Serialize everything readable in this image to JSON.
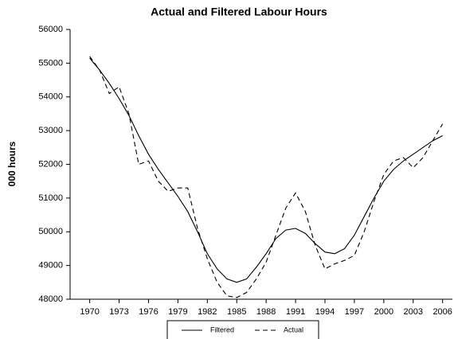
{
  "chart_data": {
    "type": "line",
    "title": "Actual and Filtered Labour Hours",
    "y_label": "000 hours",
    "x": [
      1970,
      1971,
      1972,
      1973,
      1974,
      1975,
      1976,
      1977,
      1978,
      1979,
      1980,
      1981,
      1982,
      1983,
      1984,
      1985,
      1986,
      1987,
      1988,
      1989,
      1990,
      1991,
      1992,
      1993,
      1994,
      1995,
      1996,
      1997,
      1998,
      1999,
      2000,
      2001,
      2002,
      2003,
      2004,
      2005,
      2006
    ],
    "series": [
      {
        "name": "Filtered",
        "color": "#000000",
        "dash": false,
        "values": [
          55150,
          54800,
          54400,
          53950,
          53450,
          52850,
          52300,
          51850,
          51450,
          51050,
          50600,
          50000,
          49350,
          48900,
          48600,
          48500,
          48600,
          48950,
          49350,
          49800,
          50050,
          50100,
          49950,
          49650,
          49400,
          49350,
          49500,
          49900,
          50450,
          51000,
          51500,
          51850,
          52100,
          52300,
          52500,
          52700,
          52850
        ]
      },
      {
        "name": "Actual",
        "color": "#000000",
        "dash": true,
        "values": [
          55200,
          54800,
          54100,
          54300,
          53500,
          52000,
          52100,
          51500,
          51200,
          51300,
          51300,
          50100,
          49200,
          48500,
          48100,
          48050,
          48200,
          48600,
          49100,
          49900,
          50700,
          51150,
          50600,
          49600,
          48900,
          49050,
          49150,
          49300,
          50000,
          50900,
          51700,
          52100,
          52200,
          51900,
          52200,
          52700,
          53200
        ]
      }
    ],
    "xlim": [
      1968,
      2007
    ],
    "xticks": [
      1970,
      1973,
      1976,
      1979,
      1982,
      1985,
      1988,
      1991,
      1994,
      1997,
      2000,
      2003,
      2006
    ],
    "ylim": [
      48000,
      56000
    ],
    "yticks": [
      48000,
      49000,
      50000,
      51000,
      52000,
      53000,
      54000,
      55000,
      56000
    ],
    "legend": "bottom"
  }
}
